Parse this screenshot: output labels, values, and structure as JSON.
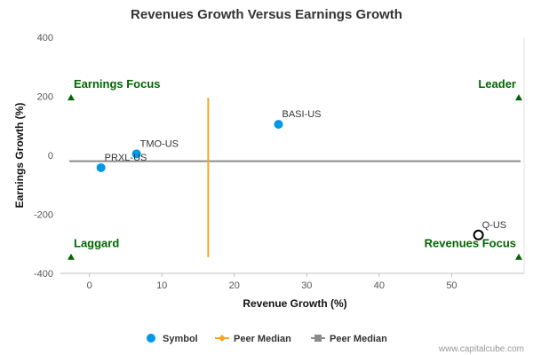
{
  "chart_data": {
    "type": "scatter",
    "title": "Revenues Growth Versus Earnings Growth",
    "xlabel": "Revenue Growth (%)",
    "ylabel": "Earnings Growth (%)",
    "xlim": [
      -4,
      60
    ],
    "ylim": [
      -400,
      400
    ],
    "xticks": [
      0,
      10,
      20,
      30,
      40,
      50
    ],
    "yticks": [
      400,
      200,
      0,
      -200,
      -400
    ],
    "points": [
      {
        "label": "BASI-US",
        "x": 26.1,
        "y": 105,
        "style": "filled"
      },
      {
        "label": "TMO-US",
        "x": 6.5,
        "y": 5,
        "style": "filled"
      },
      {
        "label": "PRXL-US",
        "x": 1.6,
        "y": -42,
        "style": "filled"
      },
      {
        "label": "Q-US",
        "x": 53.7,
        "y": -270,
        "style": "hollow"
      }
    ],
    "peer_median_x": 16.4,
    "peer_median_x_range": [
      -345,
      195
    ],
    "peer_median_y": -20,
    "quadrants": [
      {
        "label": "Earnings Focus",
        "anchor": "top-left"
      },
      {
        "label": "Leader",
        "anchor": "top-right"
      },
      {
        "label": "Laggard",
        "anchor": "bottom-left"
      },
      {
        "label": "Revenues Focus",
        "anchor": "bottom-right"
      }
    ],
    "quadrant_marker_y": [
      195,
      -345
    ],
    "legend": [
      {
        "label": "Symbol",
        "marker": "dot"
      },
      {
        "label": "Peer Median",
        "marker": "diamond-line"
      },
      {
        "label": "Peer Median",
        "marker": "square-line"
      }
    ],
    "legend_position": "bottom",
    "colors": {
      "symbol": "#0099e6",
      "peer_median_x_line": "#f5a623",
      "peer_median_y_line": "#8c8c8c",
      "quadrant": "#006600",
      "hollow_point": "#000000"
    }
  },
  "credit": "www.capitalcube.com"
}
